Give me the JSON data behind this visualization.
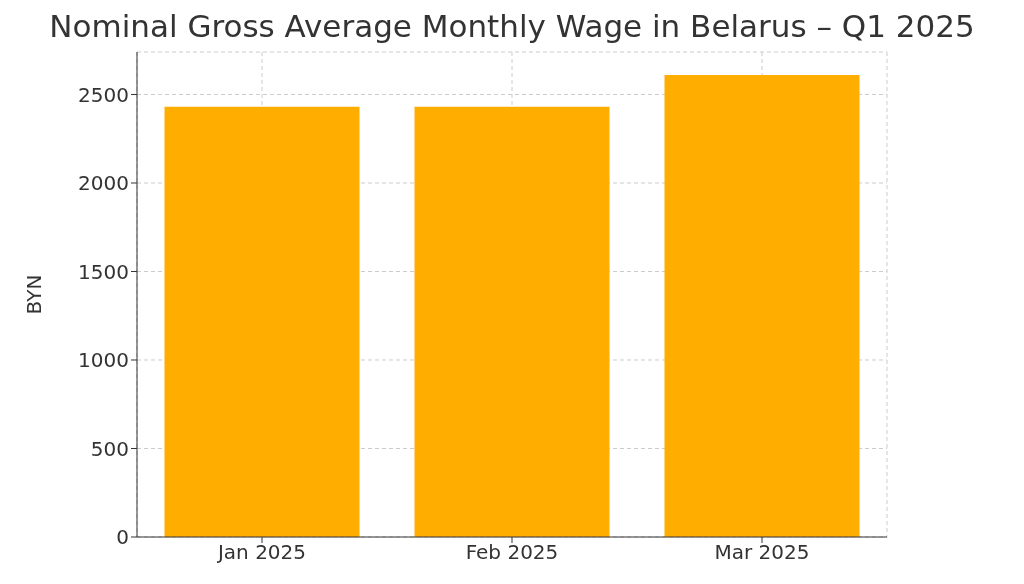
{
  "chart_data": {
    "type": "bar",
    "title": "Nominal Gross Average Monthly Wage in Belarus – Q1 2025",
    "ylabel": "BYN",
    "categories": [
      "Jan 2025",
      "Feb 2025",
      "Mar 2025"
    ],
    "values": [
      2430,
      2430,
      2610
    ],
    "color": "#ffae00",
    "ylim": [
      0,
      2740
    ],
    "yticks": [
      0,
      500,
      1000,
      1500,
      2000,
      2500
    ],
    "grid": true
  }
}
